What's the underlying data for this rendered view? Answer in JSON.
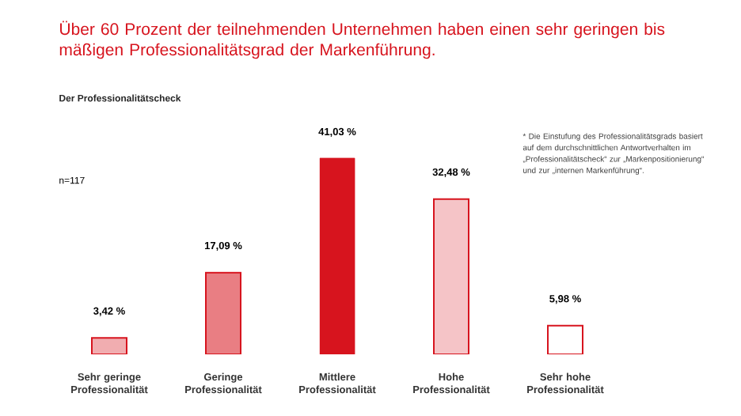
{
  "chart_data": {
    "type": "bar",
    "title": "Über 60 Prozent der teilnehmenden Unternehmen haben einen sehr geringen bis mäßigen Professionalitätsgrad der Markenführung.",
    "subtitle": "Der Professionalitätscheck",
    "categories": [
      "Sehr geringe Professionalität",
      "Geringe Professionalität",
      "Mittlere Professionalität",
      "Hohe Professionalität",
      "Sehr hohe Professionalität"
    ],
    "values": [
      3.42,
      17.09,
      41.03,
      32.48,
      5.98
    ],
    "value_labels": [
      "3,42 %",
      "17,09 %",
      "41,03 %",
      "32,48 %",
      "5,98 %"
    ],
    "colors": [
      "#d7141e",
      "#d7141e",
      "#d7141e",
      "#d7141e",
      "#d7141e"
    ],
    "annotations": [
      "n=117",
      "* Die Einstufung des Professionalitätsgrads basiert auf dem durchschnittlichen Antwortverhalten im „Professionalitätscheck“ zur „Markenpositionierung“ und zur „internen Markenführung“."
    ]
  }
}
